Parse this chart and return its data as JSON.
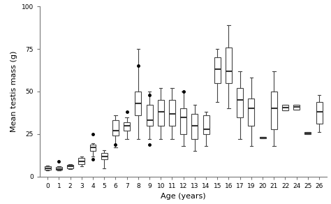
{
  "title": "",
  "xlabel": "Age (years)",
  "ylabel": "Mean testis mass (g)",
  "ylim": [
    0,
    100
  ],
  "yticks": [
    0,
    25,
    50,
    75,
    100
  ],
  "background_color": "#ffffff",
  "box_color": "white",
  "edge_color": "#444444",
  "median_color": "#333333",
  "whisker_color": "#444444",
  "flier_color": "black",
  "xtick_labels": [
    "0",
    "1",
    "2",
    "3",
    "4",
    "5",
    "6",
    "7",
    "8",
    "9",
    "10",
    "11",
    "12",
    "13",
    "14",
    "15",
    "16",
    "17",
    "19",
    "20",
    "21",
    "22",
    "24",
    "25",
    "26"
  ],
  "ages": [
    0,
    1,
    2,
    3,
    4,
    5,
    6,
    7,
    8,
    9,
    10,
    11,
    12,
    13,
    14,
    15,
    16,
    17,
    19,
    20,
    21,
    22,
    24,
    25,
    26
  ],
  "boxes": {
    "0": {
      "q1": 4.0,
      "median": 5.0,
      "q3": 6.0,
      "whislo": 3.5,
      "whishi": 6.5,
      "fliers": []
    },
    "1": {
      "q1": 4.0,
      "median": 4.5,
      "q3": 5.5,
      "whislo": 3.5,
      "whishi": 6.0,
      "fliers": [
        9
      ]
    },
    "2": {
      "q1": 5.0,
      "median": 6.0,
      "q3": 7.0,
      "whislo": 4.5,
      "whishi": 7.5,
      "fliers": []
    },
    "3": {
      "q1": 7.5,
      "median": 9.0,
      "q3": 11.0,
      "whislo": 6.0,
      "whishi": 12.0,
      "fliers": []
    },
    "4": {
      "q1": 15.0,
      "median": 17.0,
      "q3": 19.0,
      "whislo": 12.0,
      "whishi": 19.5,
      "fliers": [
        10,
        25
      ]
    },
    "5": {
      "q1": 10.0,
      "median": 12.0,
      "q3": 14.0,
      "whislo": 5.0,
      "whishi": 15.5,
      "fliers": []
    },
    "6": {
      "q1": 24.0,
      "median": 27.0,
      "q3": 33.0,
      "whislo": 17.0,
      "whishi": 36.0,
      "fliers": [
        19
      ]
    },
    "7": {
      "q1": 27.0,
      "median": 30.0,
      "q3": 32.0,
      "whislo": 22.0,
      "whishi": 35.0,
      "fliers": [
        38
      ]
    },
    "8": {
      "q1": 36.0,
      "median": 43.0,
      "q3": 50.0,
      "whislo": 22.0,
      "whishi": 75.0,
      "fliers": [
        65
      ]
    },
    "9": {
      "q1": 30.0,
      "median": 33.0,
      "q3": 42.0,
      "whislo": 22.0,
      "whishi": 50.0,
      "fliers": [
        48,
        19
      ]
    },
    "10": {
      "q1": 30.0,
      "median": 38.0,
      "q3": 45.0,
      "whislo": 22.0,
      "whishi": 52.0,
      "fliers": []
    },
    "11": {
      "q1": 30.0,
      "median": 37.0,
      "q3": 45.0,
      "whislo": 22.0,
      "whishi": 52.0,
      "fliers": []
    },
    "12": {
      "q1": 25.0,
      "median": 35.0,
      "q3": 40.0,
      "whislo": 18.0,
      "whishi": 50.0,
      "fliers": [
        50
      ]
    },
    "13": {
      "q1": 22.0,
      "median": 30.0,
      "q3": 37.0,
      "whislo": 15.0,
      "whishi": 42.0,
      "fliers": []
    },
    "14": {
      "q1": 25.0,
      "median": 28.0,
      "q3": 36.0,
      "whislo": 18.0,
      "whishi": 38.0,
      "fliers": []
    },
    "15": {
      "q1": 55.0,
      "median": 63.0,
      "q3": 70.0,
      "whislo": 44.0,
      "whishi": 75.0,
      "fliers": []
    },
    "16": {
      "q1": 55.0,
      "median": 62.0,
      "q3": 76.0,
      "whislo": 40.0,
      "whishi": 89.0,
      "fliers": []
    },
    "17": {
      "q1": 35.0,
      "median": 45.0,
      "q3": 52.0,
      "whislo": 22.0,
      "whishi": 62.0,
      "fliers": []
    },
    "19": {
      "q1": 30.0,
      "median": 40.0,
      "q3": 46.0,
      "whislo": 18.0,
      "whishi": 58.0,
      "fliers": []
    },
    "20": {
      "q1": 22.5,
      "median": 23.0,
      "q3": 23.5,
      "whislo": 22.5,
      "whishi": 23.5,
      "fliers": []
    },
    "21": {
      "q1": 28.0,
      "median": 40.0,
      "q3": 50.0,
      "whislo": 18.0,
      "whishi": 62.0,
      "fliers": []
    },
    "22": {
      "q1": 39.0,
      "median": 40.5,
      "q3": 42.0,
      "whislo": 39.0,
      "whishi": 42.0,
      "fliers": []
    },
    "24": {
      "q1": 39.5,
      "median": 41.0,
      "q3": 42.0,
      "whislo": 39.5,
      "whishi": 42.0,
      "fliers": []
    },
    "25": {
      "q1": 25.0,
      "median": 25.5,
      "q3": 26.0,
      "whislo": 25.0,
      "whishi": 26.0,
      "fliers": []
    },
    "26": {
      "q1": 31.0,
      "median": 38.0,
      "q3": 44.0,
      "whislo": 26.0,
      "whishi": 48.0,
      "fliers": []
    }
  },
  "figsize": [
    4.74,
    2.92
  ],
  "dpi": 100
}
